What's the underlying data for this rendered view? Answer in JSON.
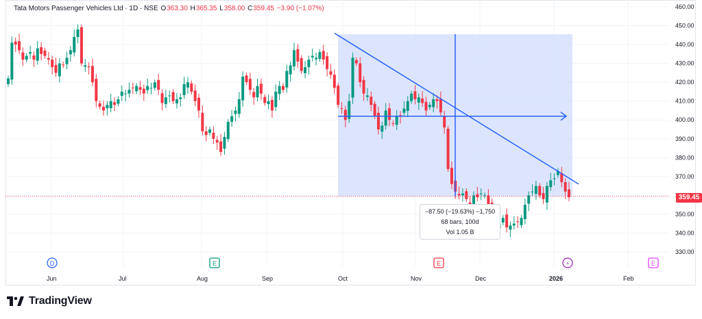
{
  "legend": {
    "symbol": "Tata Motors Passenger Vehicles Ltd · 1D · NSE",
    "o_label": "O",
    "o_value": "363.30",
    "h_label": "H",
    "h_value": "365.35",
    "l_label": "L",
    "l_value": "358.00",
    "c_label": "C",
    "c_value": "359.45",
    "change": "−3.90 (−1.07%)"
  },
  "measure_tooltip": {
    "line1": "−87.50 (−19.63%) −1,750",
    "line2": "68 bars, 100d",
    "line3": "Vol 1.05 B"
  },
  "last_price_tag": "359.45",
  "brand": {
    "name": "TradingView"
  },
  "event_markers": [
    {
      "letter": "D",
      "color": "#2962ff",
      "x_label": "Jun-end"
    },
    {
      "letter": "E",
      "color": "#089981",
      "x_label": "Aug"
    },
    {
      "letter": "E",
      "color": "#f23645",
      "x_label": "Nov"
    },
    {
      "letter": "⚡",
      "color": "#9c27b0",
      "x_label": "2026"
    },
    {
      "letter": "E",
      "color": "#e040fb",
      "x_label": "Feb"
    }
  ],
  "colors": {
    "up": "#089981",
    "down": "#f23645",
    "drawing": "#2962ff",
    "zone": "#d6e0fd",
    "grid": "#f0f3fa"
  },
  "chart_data": {
    "type": "candlestick",
    "title": "Tata Motors Passenger Vehicles Ltd · 1D · NSE",
    "y_ticks": [
      "460.00",
      "450.00",
      "440.00",
      "430.00",
      "420.00",
      "410.00",
      "400.00",
      "390.00",
      "380.00",
      "370.00",
      "360.00",
      "350.00",
      "340.00",
      "330.00"
    ],
    "ylim": [
      324,
      462
    ],
    "x_ticks": [
      "Jun",
      "Jul",
      "Aug",
      "Sep",
      "Oct",
      "Nov",
      "Dec",
      "2026",
      "Feb"
    ],
    "series": [
      {
        "name": "price",
        "values": [
          422,
          441,
          440,
          437,
          432,
          434,
          436,
          432,
          438,
          435,
          434,
          432,
          428,
          425,
          430,
          429,
          433,
          437,
          444,
          448,
          430,
          429,
          428,
          420,
          410,
          407,
          405,
          408,
          410,
          408,
          411,
          415,
          414,
          416,
          417,
          418,
          416,
          414,
          418,
          417,
          420,
          416,
          409,
          412,
          413,
          410,
          411,
          412,
          419,
          420,
          415,
          410,
          405,
          394,
          392,
          395,
          390,
          388,
          383,
          391,
          399,
          402,
          405,
          411,
          423,
          420,
          416,
          412,
          418,
          414,
          409,
          410,
          405,
          415,
          418,
          416,
          426,
          429,
          437,
          431,
          426,
          428,
          432,
          434,
          433,
          436,
          432,
          427,
          424,
          417,
          408,
          406,
          400,
          410,
          433,
          430,
          420,
          414,
          413,
          408,
          402,
          395,
          397,
          405,
          400,
          398,
          402,
          402,
          406,
          410,
          414,
          411,
          412,
          409,
          405,
          408,
          411,
          410,
          404,
          396,
          374,
          366,
          362,
          360,
          361,
          358,
          354,
          360,
          359,
          361,
          360,
          355,
          350,
          343,
          345,
          348,
          343,
          344,
          345,
          346,
          348,
          355,
          360,
          362,
          365,
          360,
          358,
          365,
          368,
          369,
          373,
          367,
          362,
          359
        ]
      }
    ],
    "measure": {
      "change": -87.5,
      "change_pct": -19.63,
      "bars": 68,
      "days": 100,
      "volume": "1.05 B"
    },
    "last_price": 359.45
  }
}
